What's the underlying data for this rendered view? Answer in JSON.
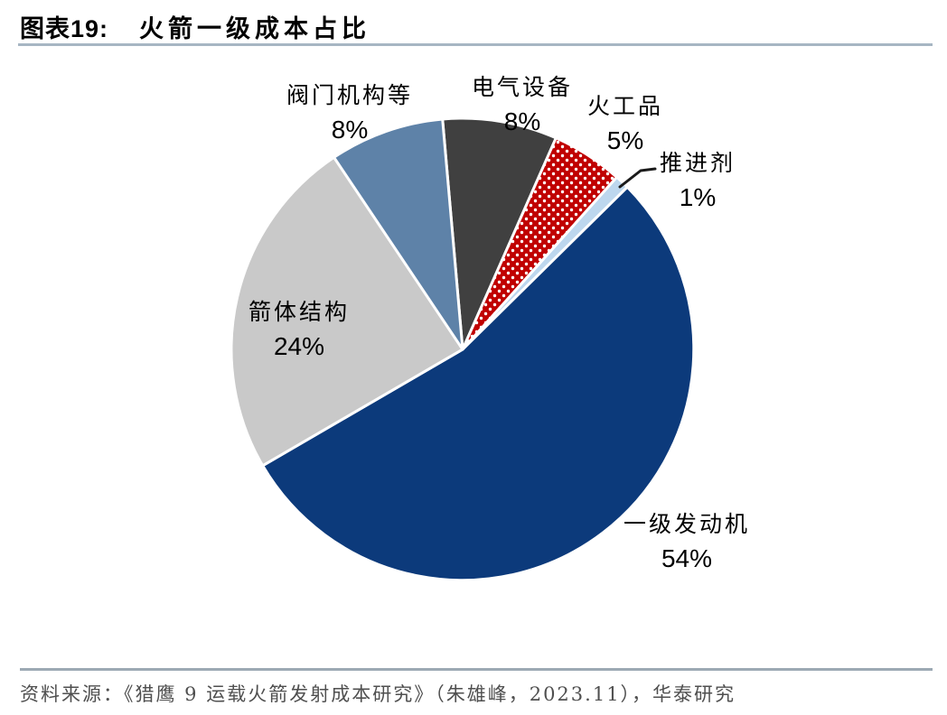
{
  "title": {
    "prefix": "图表19:",
    "text": "火箭一级成本占比"
  },
  "footer": {
    "source": "资料来源：《猎鹰 9 运载火箭发射成本研究》（朱雄峰，2023.11），华泰研究"
  },
  "colors": {
    "title_rule": "#a7b6c3",
    "footer_rule": "#9ca9b4",
    "leader_line": "#1a1a1a",
    "slice_border": "#ffffff"
  },
  "chart_data": {
    "type": "pie",
    "title": "火箭一级成本占比",
    "unit": "%",
    "start_angle_deg": -5,
    "direction": "clockwise",
    "stroke_color": "#ffffff",
    "legend": "none",
    "slices": [
      {
        "key": "electrical-equipment",
        "label": "电气设备",
        "value": 8,
        "pct": "8%",
        "color": "#404040",
        "pattern": "solid"
      },
      {
        "key": "pyrotechnics",
        "label": "火工品",
        "value": 5,
        "pct": "5%",
        "color": "#C00000",
        "pattern": "white-dots",
        "dot_color": "#ffffff"
      },
      {
        "key": "propellant",
        "label": "推进剂",
        "value": 1,
        "pct": "1%",
        "color": "#BDD7EE",
        "pattern": "solid"
      },
      {
        "key": "first-stage-engine",
        "label": "一级发动机",
        "value": 54,
        "pct": "54%",
        "color": "#0C3A7B",
        "pattern": "solid"
      },
      {
        "key": "rocket-body-structure",
        "label": "箭体结构",
        "value": 24,
        "pct": "24%",
        "color": "#C9C9C9",
        "pattern": "solid"
      },
      {
        "key": "valve-mechanism-etc",
        "label": "阀门机构等",
        "value": 8,
        "pct": "8%",
        "color": "#5E82A8",
        "pattern": "solid"
      }
    ]
  }
}
